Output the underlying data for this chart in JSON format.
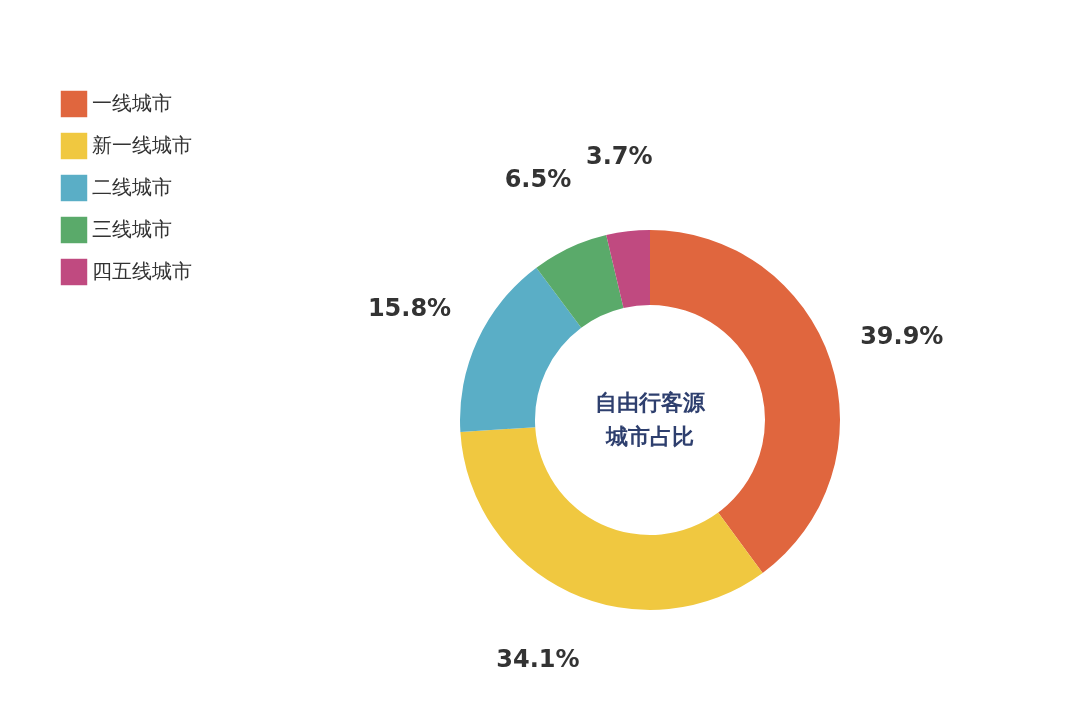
{
  "chart_data": {
    "type": "donut",
    "title": "自由行客源城市占比",
    "categories": [
      "一线城市",
      "新一线城市",
      "二线城市",
      "三线城市",
      "四五线城市"
    ],
    "values": [
      39.9,
      34.1,
      15.8,
      6.5,
      3.7
    ],
    "value_labels": [
      "39.9%",
      "34.1%",
      "15.8%",
      "6.5%",
      "3.7%"
    ],
    "colors": [
      "#e0663e",
      "#f0c840",
      "#5aaec6",
      "#5aaa6a",
      "#c04a80"
    ],
    "legend": "top left"
  }
}
